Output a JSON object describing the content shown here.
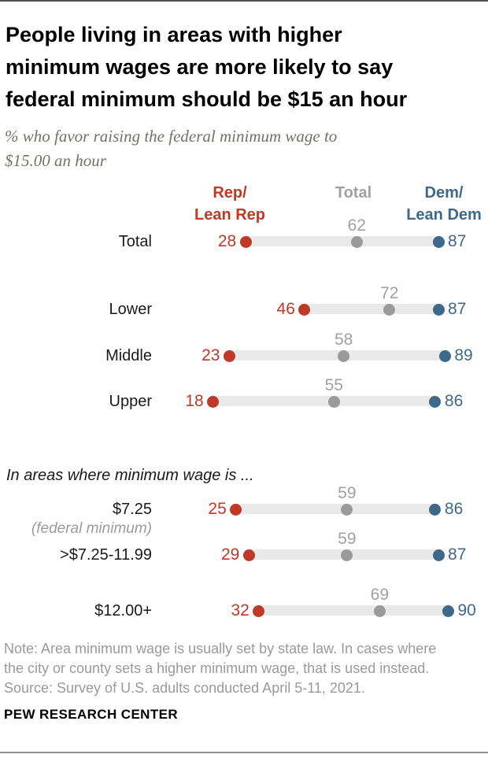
{
  "header": {
    "title_lines": [
      "People living in areas with higher",
      "minimum wages are more likely to say",
      "federal minimum should be $15 an hour"
    ],
    "subtitle_lines": [
      "% who favor raising the federal minimum wage to",
      "$15.00 an hour"
    ]
  },
  "legend": {
    "rep_lines": [
      "Rep/",
      "Lean Rep"
    ],
    "total_label": "Total",
    "dem_lines": [
      "Dem/",
      "Lean Dem"
    ]
  },
  "section_heading": "In areas where minimum wage is ...",
  "chart_data": {
    "type": "scatter",
    "variant": "dumbbell-dot-plot",
    "title": "People living in areas with higher minimum wages are more likely to say federal minimum should be $15 an hour",
    "subtitle": "% who favor raising the federal minimum wage to $15.00 an hour",
    "xlim": [
      0,
      100
    ],
    "grid": false,
    "legend_position": "top",
    "series_names": [
      "Rep/Lean Rep",
      "Total",
      "Dem/Lean Dem"
    ],
    "series_colors": [
      "#bf3927",
      "#9a9a9a",
      "#3d6a8a"
    ],
    "rows": [
      {
        "label": "Total",
        "sublabel": "",
        "rep": 28,
        "total": 62,
        "dem": 87
      },
      {
        "label": "Lower",
        "sublabel": "",
        "rep": 46,
        "total": 72,
        "dem": 87
      },
      {
        "label": "Middle",
        "sublabel": "",
        "rep": 23,
        "total": 58,
        "dem": 89
      },
      {
        "label": "Upper",
        "sublabel": "",
        "rep": 18,
        "total": 55,
        "dem": 86
      },
      {
        "label": "$7.25",
        "sublabel": "(federal minimum)",
        "rep": 25,
        "total": 59,
        "dem": 86
      },
      {
        "label": ">$7.25-11.99",
        "sublabel": "",
        "rep": 29,
        "total": 59,
        "dem": 87
      },
      {
        "label": "$12.00+",
        "sublabel": "",
        "rep": 32,
        "total": 69,
        "dem": 90
      }
    ]
  },
  "note_lines": [
    "Note: Area minimum wage is usually set by state law. In cases where",
    "the city or county sets a higher minimum wage, that is used instead.",
    "Source: Survey of U.S. adults conducted April 5-11, 2021."
  ],
  "footer": "PEW RESEARCH CENTER",
  "colors": {
    "rep": "#bf3927",
    "dem": "#3d6a8a",
    "total_gray": "#a1a1a1",
    "dot_gray": "#9a9a9a",
    "track": "#e9e9e9",
    "note_gray": "#9a9a9a",
    "subtitle_gray": "#75716a"
  }
}
